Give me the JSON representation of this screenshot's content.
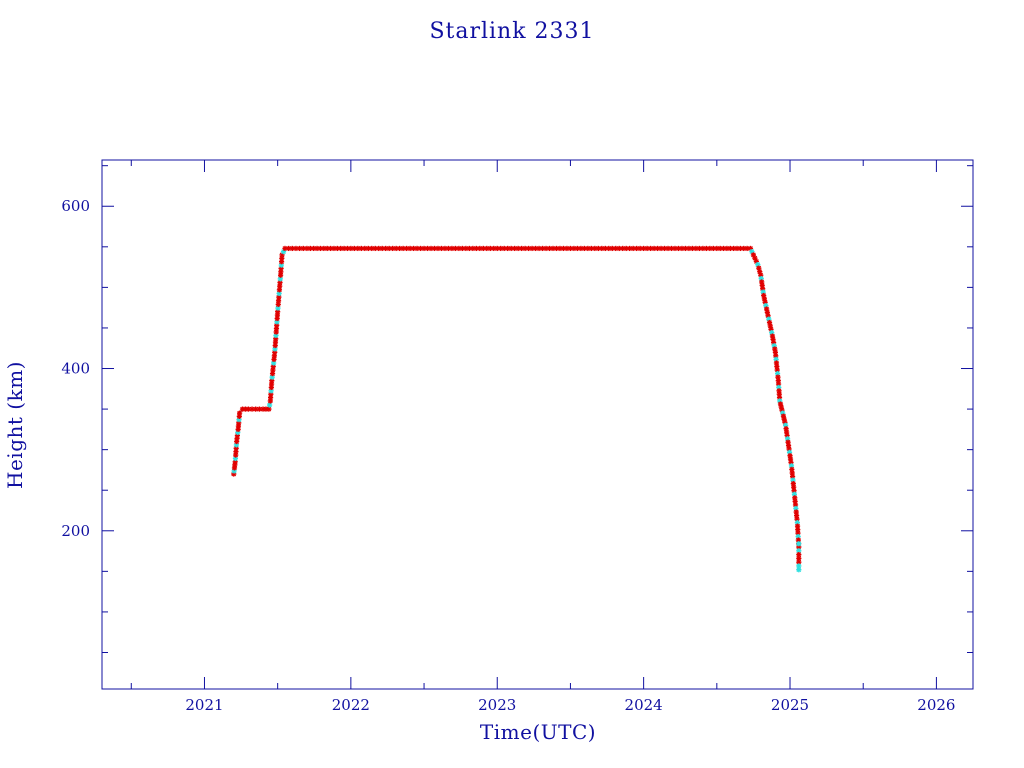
{
  "chart_data": {
    "type": "scatter",
    "title": "Starlink 2331",
    "xlabel": "Time(UTC)",
    "ylabel": "Height (km)",
    "xlim": [
      2020.3,
      2026.25
    ],
    "ylim": [
      5,
      657
    ],
    "x_ticks": [
      2021,
      2022,
      2023,
      2024,
      2025,
      2026
    ],
    "y_ticks": [
      200,
      400,
      600
    ],
    "grid": false,
    "colors": {
      "axes": "#1010a0",
      "series_main": "#e00000",
      "series_alt": "#30e0e0",
      "line": "#000000"
    },
    "series": [
      {
        "marker": "asterisk",
        "values": [
          [
            2021.2,
            270
          ],
          [
            2021.21,
            285
          ],
          [
            2021.22,
            310
          ],
          [
            2021.23,
            325
          ],
          [
            2021.24,
            345
          ],
          [
            2021.26,
            350
          ],
          [
            2021.3,
            350
          ],
          [
            2021.35,
            350
          ],
          [
            2021.4,
            350
          ],
          [
            2021.44,
            350
          ],
          [
            2021.45,
            360
          ],
          [
            2021.46,
            385
          ],
          [
            2021.48,
            420
          ],
          [
            2021.5,
            470
          ],
          [
            2021.52,
            515
          ],
          [
            2021.53,
            540
          ],
          [
            2021.55,
            548
          ],
          [
            2021.7,
            548
          ],
          [
            2022.0,
            548
          ],
          [
            2022.5,
            548
          ],
          [
            2023.0,
            548
          ],
          [
            2023.5,
            548
          ],
          [
            2024.0,
            548
          ],
          [
            2024.5,
            548
          ],
          [
            2024.73,
            548
          ],
          [
            2024.75,
            540
          ],
          [
            2024.78,
            528
          ],
          [
            2024.8,
            515
          ],
          [
            2024.82,
            490
          ],
          [
            2024.85,
            465
          ],
          [
            2024.88,
            440
          ],
          [
            2024.9,
            420
          ],
          [
            2024.92,
            385
          ],
          [
            2024.93,
            360
          ],
          [
            2024.95,
            345
          ],
          [
            2024.97,
            330
          ],
          [
            2024.99,
            305
          ],
          [
            2025.01,
            280
          ],
          [
            2025.03,
            245
          ],
          [
            2025.05,
            210
          ],
          [
            2025.06,
            180
          ],
          [
            2025.06,
            152
          ]
        ]
      }
    ]
  }
}
